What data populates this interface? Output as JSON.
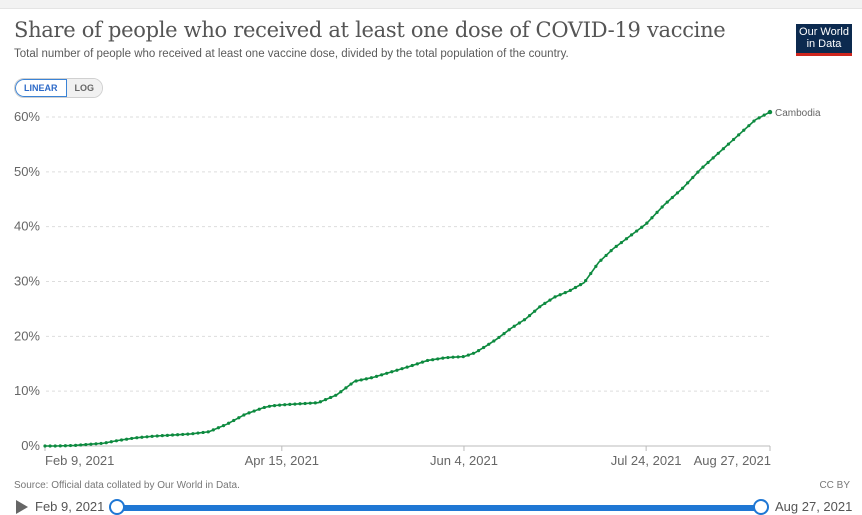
{
  "header": {
    "title": "Share of people who received at least one dose of COVID-19 vaccine",
    "subtitle": "Total number of people who received at least one vaccine dose, divided by the total population of the country.",
    "logo_line1": "Our World",
    "logo_line2": "in Data"
  },
  "scale_toggle": {
    "options": [
      "LINEAR",
      "LOG"
    ],
    "selected": "LINEAR"
  },
  "footer": {
    "source": "Source: Official data collated by Our World in Data.",
    "license": "CC BY"
  },
  "timeline": {
    "start_label": "Feb 9, 2021",
    "end_label": "Aug 27, 2021",
    "play_icon": "play-icon"
  },
  "colors": {
    "series": "#0d8a3f",
    "grid": "#dddddd",
    "timeline": "#1f77d4",
    "logo_bg": "#0c2a4f",
    "logo_accent": "#ce261e"
  },
  "chart_data": {
    "type": "line",
    "title": "Share of people who received at least one dose of COVID-19 vaccine",
    "subtitle": "Total number of people who received at least one vaccine dose, divided by the total population of the country.",
    "xlabel": "",
    "ylabel": "",
    "ylim": [
      0,
      60
    ],
    "xlim_days": [
      0,
      199
    ],
    "y_ticks": [
      0,
      10,
      20,
      30,
      40,
      50,
      60
    ],
    "y_tick_labels": [
      "0%",
      "10%",
      "20%",
      "30%",
      "40%",
      "50%",
      "60%"
    ],
    "x_ticks": [
      {
        "day": 0,
        "label": "Feb 9, 2021"
      },
      {
        "day": 65,
        "label": "Apr 15, 2021"
      },
      {
        "day": 115,
        "label": "Jun 4, 2021"
      },
      {
        "day": 165,
        "label": "Jul 24, 2021"
      },
      {
        "day": 199,
        "label": "Aug 27, 2021"
      }
    ],
    "grid": true,
    "legend": "end-of-line label",
    "series": [
      {
        "name": "Cambodia",
        "x_unit": "days since Feb 9, 2021",
        "x": [
          0,
          3,
          8,
          12,
          16,
          20,
          25,
          30,
          35,
          40,
          45,
          50,
          55,
          60,
          62,
          65,
          70,
          75,
          80,
          85,
          90,
          95,
          100,
          105,
          110,
          112,
          115,
          118,
          121,
          124,
          128,
          132,
          136,
          140,
          144,
          148,
          152,
          156,
          158,
          160,
          163,
          165,
          170,
          175,
          180,
          185,
          190,
          195,
          199
        ],
        "y": [
          0,
          0,
          0.1,
          0.3,
          0.5,
          1.0,
          1.5,
          1.8,
          2.0,
          2.2,
          2.6,
          4.0,
          5.8,
          7.0,
          7.3,
          7.5,
          7.7,
          7.9,
          9.3,
          11.8,
          12.5,
          13.5,
          14.5,
          15.6,
          16.1,
          16.2,
          16.3,
          17.0,
          18.2,
          19.5,
          21.5,
          23.2,
          25.5,
          27.2,
          28.3,
          29.8,
          33.5,
          36.0,
          37.0,
          38.0,
          39.5,
          40.5,
          44.0,
          47.0,
          50.5,
          53.5,
          56.5,
          59.5,
          60.9
        ]
      }
    ]
  }
}
